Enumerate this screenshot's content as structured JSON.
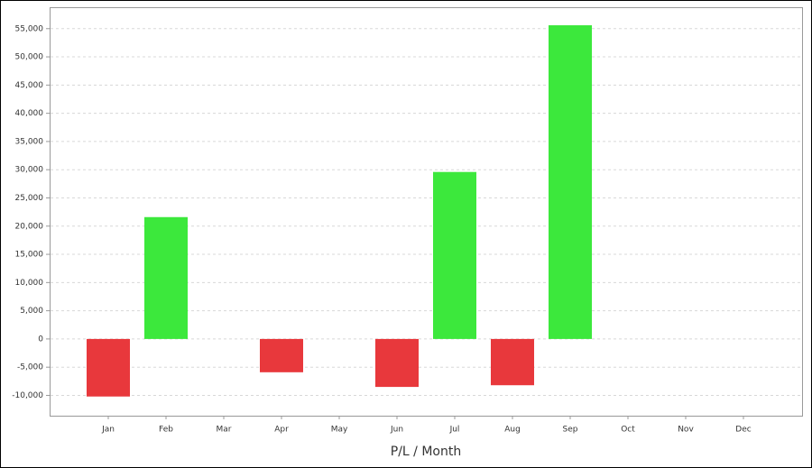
{
  "chart_data": {
    "type": "bar",
    "x_label": "P/L / Month",
    "categories": [
      "Jan",
      "Feb",
      "Mar",
      "Apr",
      "May",
      "Jun",
      "Jul",
      "Aug",
      "Sep",
      "Oct",
      "Nov",
      "Dec"
    ],
    "values": [
      -10200,
      21600,
      0,
      -5900,
      0,
      -8500,
      29600,
      -8200,
      55600,
      0,
      0,
      0
    ],
    "positive_color": "#3ce83c",
    "negative_color": "#e8383c",
    "ylim": [
      -13600,
      58800
    ],
    "yticks": [
      {
        "value": -10000,
        "label": "-10,000"
      },
      {
        "value": -5000,
        "label": "-5,000"
      },
      0,
      {
        "value": 5000,
        "label": "5,000"
      },
      {
        "value": 10000,
        "label": "10,000"
      },
      {
        "value": 15000,
        "label": "15,000"
      },
      {
        "value": 20000,
        "label": "20,000"
      },
      {
        "value": 25000,
        "label": "25,000"
      },
      {
        "value": 30000,
        "label": "30,000"
      },
      {
        "value": 35000,
        "label": "35,000"
      },
      {
        "value": 40000,
        "label": "40,000"
      },
      {
        "value": 45000,
        "label": "45,000"
      },
      {
        "value": 50000,
        "label": "50,000"
      },
      {
        "value": 55000,
        "label": "55,000"
      }
    ],
    "grid": true
  }
}
